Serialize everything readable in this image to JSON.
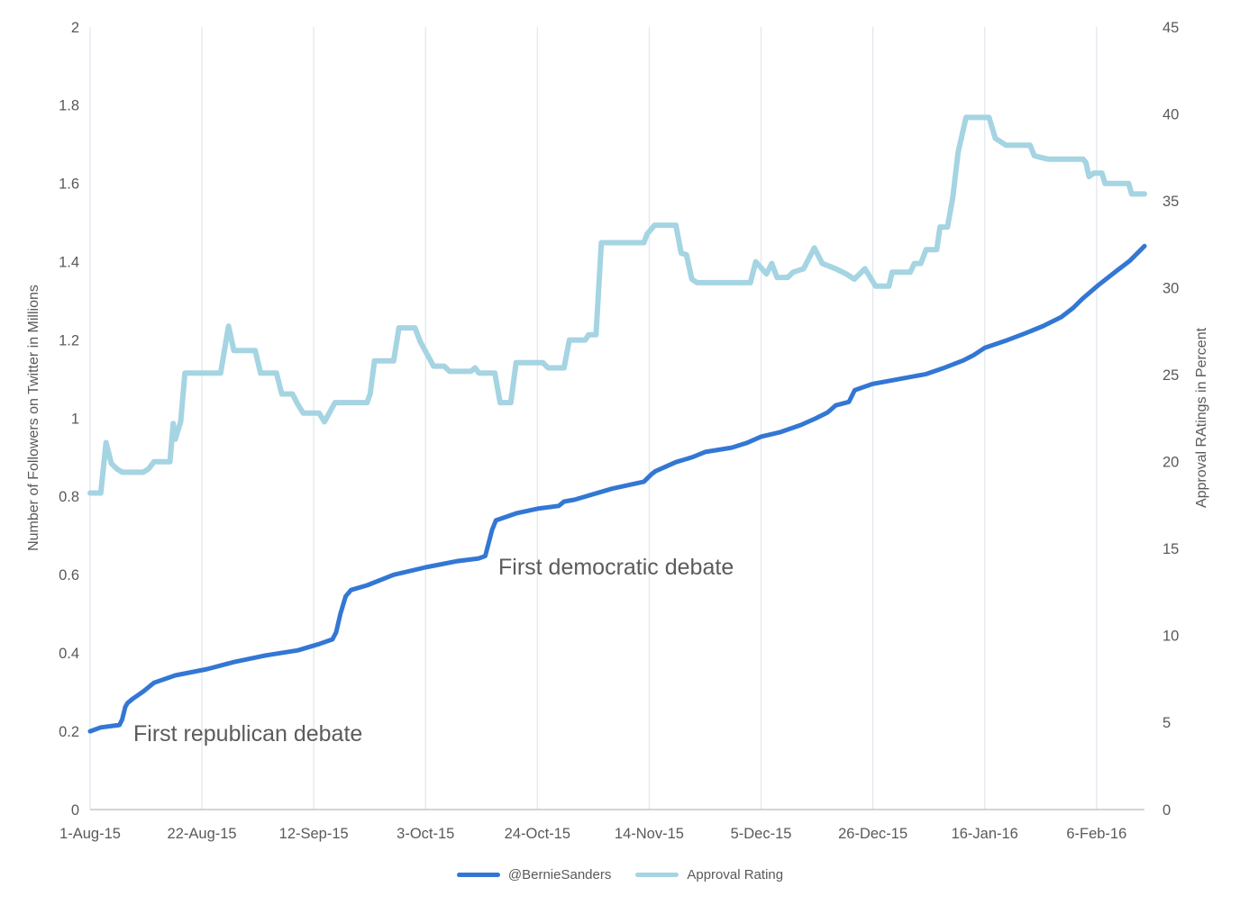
{
  "chart_data": {
    "type": "line",
    "x_axis": {
      "tick_labels": [
        "1-Aug-15",
        "22-Aug-15",
        "12-Sep-15",
        "3-Oct-15",
        "24-Oct-15",
        "14-Nov-15",
        "5-Dec-15",
        "26-Dec-15",
        "16-Jan-16",
        "6-Feb-16"
      ],
      "tick_days": [
        0,
        21,
        42,
        63,
        84,
        105,
        126,
        147,
        168,
        189
      ],
      "domain_days": [
        0,
        198
      ],
      "grid": "vertical-only"
    },
    "left_y_axis": {
      "label": "Number of Followers on Twitter in Millions",
      "min": 0,
      "max": 2,
      "tick_labels": [
        "0",
        "0.2",
        "0.4",
        "0.6",
        "0.8",
        "1",
        "1.2",
        "1.4",
        "1.6",
        "1.8",
        "2"
      ],
      "tick_values": [
        0,
        0.2,
        0.4,
        0.6,
        0.8,
        1,
        1.2,
        1.4,
        1.6,
        1.8,
        2
      ]
    },
    "right_y_axis": {
      "label": "Approval RAtings in Percent",
      "min": 0,
      "max": 45,
      "tick_labels": [
        "0",
        "5",
        "10",
        "15",
        "20",
        "25",
        "30",
        "35",
        "40",
        "45"
      ],
      "tick_values": [
        0,
        5,
        10,
        15,
        20,
        25,
        30,
        35,
        40,
        45
      ]
    },
    "legend_position": "bottom-center",
    "series": [
      {
        "name": "@BernieSanders",
        "axis": "left",
        "color": "#3377d4",
        "stroke_width": 5,
        "points": [
          [
            0,
            0.2
          ],
          [
            2,
            0.21
          ],
          [
            5.5,
            0.216
          ],
          [
            6,
            0.23
          ],
          [
            6.6,
            0.262
          ],
          [
            7,
            0.272
          ],
          [
            8,
            0.283
          ],
          [
            10,
            0.302
          ],
          [
            12,
            0.324
          ],
          [
            16,
            0.343
          ],
          [
            22,
            0.359
          ],
          [
            27,
            0.377
          ],
          [
            33,
            0.394
          ],
          [
            39,
            0.407
          ],
          [
            43,
            0.423
          ],
          [
            45.5,
            0.435
          ],
          [
            46.2,
            0.453
          ],
          [
            47,
            0.5
          ],
          [
            48,
            0.545
          ],
          [
            49,
            0.561
          ],
          [
            52,
            0.573
          ],
          [
            57,
            0.6
          ],
          [
            63,
            0.619
          ],
          [
            69,
            0.635
          ],
          [
            73,
            0.642
          ],
          [
            74.2,
            0.648
          ],
          [
            75.5,
            0.715
          ],
          [
            76.2,
            0.739
          ],
          [
            80,
            0.757
          ],
          [
            84,
            0.769
          ],
          [
            88,
            0.776
          ],
          [
            89,
            0.787
          ],
          [
            91,
            0.792
          ],
          [
            98,
            0.82
          ],
          [
            104,
            0.838
          ],
          [
            105.5,
            0.858
          ],
          [
            106.2,
            0.865
          ],
          [
            110,
            0.888
          ],
          [
            113,
            0.9
          ],
          [
            115.5,
            0.914
          ],
          [
            120.5,
            0.925
          ],
          [
            123.3,
            0.937
          ],
          [
            126,
            0.953
          ],
          [
            129.5,
            0.964
          ],
          [
            133.5,
            0.983
          ],
          [
            136.3,
            1.0
          ],
          [
            138.5,
            1.015
          ],
          [
            140,
            1.033
          ],
          [
            142.5,
            1.042
          ],
          [
            143.6,
            1.072
          ],
          [
            147,
            1.088
          ],
          [
            151,
            1.098
          ],
          [
            157,
            1.113
          ],
          [
            160,
            1.127
          ],
          [
            164,
            1.148
          ],
          [
            166,
            1.162
          ],
          [
            168,
            1.18
          ],
          [
            172.3,
            1.2
          ],
          [
            175.6,
            1.217
          ],
          [
            179,
            1.236
          ],
          [
            182.4,
            1.259
          ],
          [
            184.6,
            1.282
          ],
          [
            186.3,
            1.305
          ],
          [
            189.3,
            1.34
          ],
          [
            192.5,
            1.374
          ],
          [
            195.2,
            1.402
          ],
          [
            198,
            1.44
          ]
        ]
      },
      {
        "name": "Approval Rating",
        "axis": "right",
        "color": "#a5d4e2",
        "stroke_width": 6,
        "points": [
          [
            0,
            18.2
          ],
          [
            2,
            18.2
          ],
          [
            3,
            21.1
          ],
          [
            4,
            19.9
          ],
          [
            5,
            19.6
          ],
          [
            6,
            19.4
          ],
          [
            10,
            19.4
          ],
          [
            11,
            19.6
          ],
          [
            12,
            20
          ],
          [
            15,
            20
          ],
          [
            15.6,
            22.2
          ],
          [
            16,
            21.3
          ],
          [
            17,
            22.3
          ],
          [
            17.8,
            25.1
          ],
          [
            24.5,
            25.1
          ],
          [
            26,
            27.8
          ],
          [
            27,
            26.4
          ],
          [
            31,
            26.4
          ],
          [
            32,
            25.1
          ],
          [
            35,
            25.1
          ],
          [
            36,
            23.9
          ],
          [
            38,
            23.9
          ],
          [
            39,
            23.3
          ],
          [
            40,
            22.8
          ],
          [
            43,
            22.8
          ],
          [
            44,
            22.3
          ],
          [
            46,
            23.4
          ],
          [
            52,
            23.4
          ],
          [
            52.6,
            23.9
          ],
          [
            53.4,
            25.8
          ],
          [
            57,
            25.8
          ],
          [
            58,
            27.7
          ],
          [
            61,
            27.7
          ],
          [
            62,
            26.9
          ],
          [
            64.5,
            25.5
          ],
          [
            66.5,
            25.5
          ],
          [
            67.5,
            25.2
          ],
          [
            71.5,
            25.2
          ],
          [
            72.3,
            25.4
          ],
          [
            73,
            25.1
          ],
          [
            76,
            25.1
          ],
          [
            77,
            23.4
          ],
          [
            79,
            23.4
          ],
          [
            80,
            25.7
          ],
          [
            85,
            25.7
          ],
          [
            86,
            25.4
          ],
          [
            89,
            25.4
          ],
          [
            90,
            27
          ],
          [
            93,
            27
          ],
          [
            93.6,
            27.3
          ],
          [
            95,
            27.3
          ],
          [
            96,
            32.6
          ],
          [
            104,
            32.6
          ],
          [
            104.6,
            33.1
          ],
          [
            106,
            33.6
          ],
          [
            110,
            33.6
          ],
          [
            111,
            32
          ],
          [
            112,
            31.9
          ],
          [
            113,
            30.5
          ],
          [
            114,
            30.3
          ],
          [
            124,
            30.3
          ],
          [
            125,
            31.5
          ],
          [
            127,
            30.8
          ],
          [
            128,
            31.4
          ],
          [
            129,
            30.6
          ],
          [
            131,
            30.6
          ],
          [
            132,
            30.9
          ],
          [
            134,
            31.1
          ],
          [
            136,
            32.3
          ],
          [
            137.5,
            31.4
          ],
          [
            140,
            31.1
          ],
          [
            142,
            30.8
          ],
          [
            143.5,
            30.5
          ],
          [
            145.5,
            31.1
          ],
          [
            147.5,
            30.1
          ],
          [
            150,
            30.1
          ],
          [
            150.6,
            30.9
          ],
          [
            154,
            30.9
          ],
          [
            154.8,
            31.4
          ],
          [
            156,
            31.4
          ],
          [
            157,
            32.2
          ],
          [
            159,
            32.2
          ],
          [
            159.6,
            33.5
          ],
          [
            161,
            33.5
          ],
          [
            162,
            35.2
          ],
          [
            163,
            37.8
          ],
          [
            164.5,
            39.8
          ],
          [
            168.8,
            39.8
          ],
          [
            170,
            38.6
          ],
          [
            171,
            38.4
          ],
          [
            172,
            38.2
          ],
          [
            176.5,
            38.2
          ],
          [
            177.3,
            37.6
          ],
          [
            178.5,
            37.5
          ],
          [
            180,
            37.4
          ],
          [
            186.5,
            37.4
          ],
          [
            187,
            37.2
          ],
          [
            187.6,
            36.4
          ],
          [
            188.5,
            36.6
          ],
          [
            190,
            36.6
          ],
          [
            190.6,
            36
          ],
          [
            195,
            36
          ],
          [
            195.6,
            35.4
          ],
          [
            198,
            35.4
          ]
        ]
      }
    ],
    "annotations": [
      {
        "text": "First republican debate",
        "day": 8.1,
        "value": 0.193
      },
      {
        "text": "First democratic debate",
        "day": 76.7,
        "value": 0.619
      }
    ],
    "colors": {
      "followers_line": "#3377d4",
      "approval_line": "#a5d4e2",
      "tick_text": "#595959",
      "annotation_text": "#5b5b5b",
      "gridline": "#e2e8f0",
      "axis_line": "#c6c6c6",
      "background": "#ffffff"
    }
  }
}
